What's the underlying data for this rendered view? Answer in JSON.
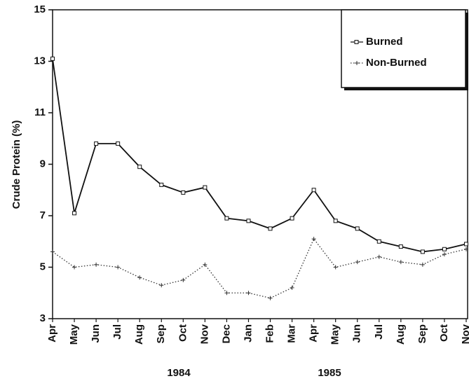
{
  "chart_data": {
    "type": "line",
    "ylabel": "Crude Protein (%)",
    "categories": [
      "Apr",
      "May",
      "Jun",
      "Jul",
      "Aug",
      "Sep",
      "Oct",
      "Nov",
      "Dec",
      "Jan",
      "Feb",
      "Mar",
      "Apr",
      "May",
      "Jun",
      "Jul",
      "Aug",
      "Sep",
      "Oct",
      "Nov"
    ],
    "year_labels": [
      "1984",
      "1985"
    ],
    "series": [
      {
        "name": "Burned",
        "color": "#111111",
        "marker": "square",
        "dash": "solid",
        "values": [
          13.1,
          7.1,
          9.8,
          9.8,
          8.9,
          8.2,
          7.9,
          8.1,
          6.9,
          6.8,
          6.5,
          6.9,
          8.0,
          6.8,
          6.5,
          6.0,
          5.8,
          5.6,
          5.7,
          5.9
        ]
      },
      {
        "name": "Non-Burned",
        "color": "#333333",
        "marker": "plus",
        "dash": "dotted",
        "values": [
          5.6,
          5.0,
          5.1,
          5.0,
          4.6,
          4.3,
          4.5,
          5.1,
          4.0,
          4.0,
          3.8,
          4.2,
          6.1,
          5.0,
          5.2,
          5.4,
          5.2,
          5.1,
          5.5,
          5.7
        ]
      }
    ],
    "ylim": [
      3,
      15
    ],
    "yticks": [
      3,
      5,
      7,
      9,
      11,
      13,
      15
    ],
    "legend": "top-right"
  }
}
